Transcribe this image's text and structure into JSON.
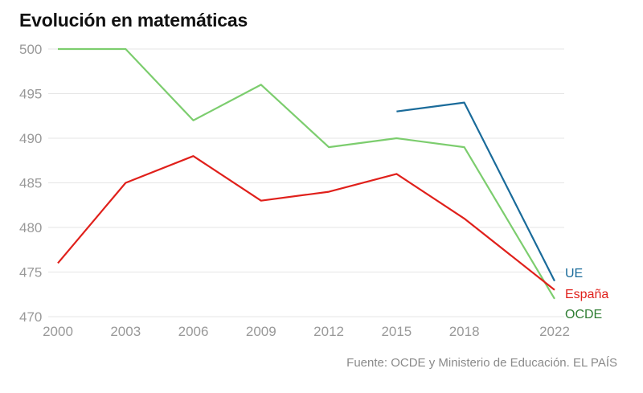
{
  "title": "Evolución en matemáticas",
  "source": "Fuente: OCDE y Ministerio de Educación. EL PAÍS",
  "chart_data": {
    "type": "line",
    "title": "Evolución en matemáticas",
    "xlabel": "",
    "ylabel": "",
    "x": [
      2000,
      2003,
      2006,
      2009,
      2012,
      2015,
      2018,
      2022
    ],
    "x_tick_labels": [
      "2000",
      "2003",
      "2006",
      "2009",
      "2012",
      "2015",
      "2018",
      "2022"
    ],
    "ylim": [
      470,
      500
    ],
    "y_ticks": [
      470,
      475,
      480,
      485,
      490,
      495,
      500
    ],
    "grid": "horizontal",
    "legend": "inline labels at end of lines",
    "series": [
      {
        "name": "OCDE",
        "color": "#7ccd6e",
        "label_color": "#2e7d32",
        "values": [
          500,
          500,
          492,
          496,
          489,
          490,
          489,
          472
        ]
      },
      {
        "name": "España",
        "color": "#e0201b",
        "label_color": "#e0201b",
        "values": [
          476,
          485,
          488,
          483,
          484,
          486,
          481,
          473
        ]
      },
      {
        "name": "UE",
        "color": "#1a6b9a",
        "label_color": "#1a6b9a",
        "values": [
          null,
          null,
          null,
          null,
          null,
          493,
          494,
          474
        ]
      }
    ]
  }
}
